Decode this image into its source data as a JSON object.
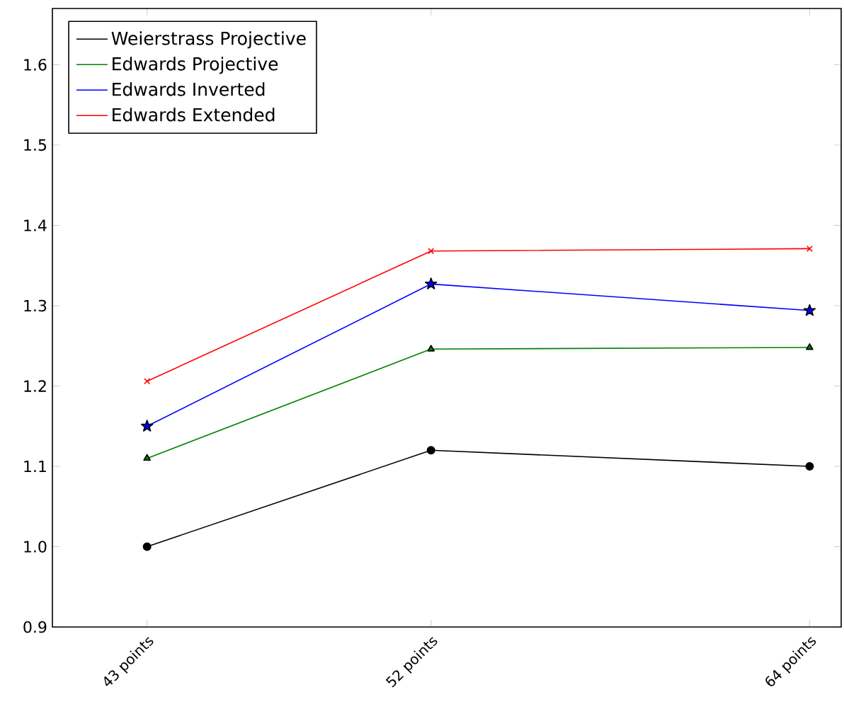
{
  "chart_data": {
    "type": "line",
    "x": [
      43,
      52,
      64
    ],
    "xlim": [
      40,
      65
    ],
    "xticks": [
      {
        "value": 43,
        "label": "43 points"
      },
      {
        "value": 52,
        "label": "52 points"
      },
      {
        "value": 64,
        "label": "64 points"
      }
    ],
    "ylim": [
      0.9,
      1.67
    ],
    "yticks": [
      0.9,
      {
        "value": 1.0,
        "label": "1.0"
      },
      1.1,
      1.2,
      1.3,
      1.4,
      1.5,
      1.6
    ],
    "legend": "top left",
    "grid": false,
    "line_style": "solid",
    "series": [
      {
        "name": "Weierstrass Projective",
        "color": "#000000",
        "marker": "circle",
        "values": [
          1.0,
          1.12,
          1.1
        ]
      },
      {
        "name": "Edwards Projective",
        "color": "#008000",
        "marker": "triangle",
        "values": [
          1.11,
          1.246,
          1.248
        ]
      },
      {
        "name": "Edwards Inverted",
        "color": "#0000ff",
        "marker": "star",
        "values": [
          1.15,
          1.327,
          1.294
        ]
      },
      {
        "name": "Edwards Extended",
        "color": "#ff0000",
        "marker": "cross",
        "values": [
          1.206,
          1.368,
          1.371
        ]
      }
    ]
  }
}
